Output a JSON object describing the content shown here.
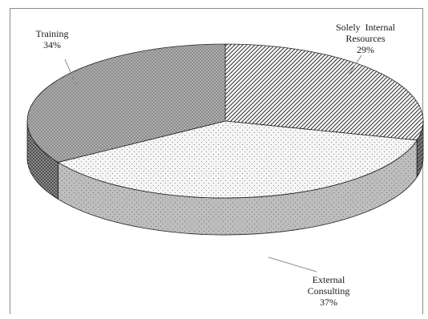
{
  "chart_data": {
    "type": "pie",
    "three_d": true,
    "title": "",
    "legend": "none",
    "slices": [
      {
        "label_lines": [
          "Solely  Internal",
          "Resources"
        ],
        "value": 29,
        "value_label": "29%",
        "pattern": "diagonal-hatch",
        "top_color": "#ffffff",
        "side_color": "#7a7a7a",
        "ink": "#333333"
      },
      {
        "label_lines": [
          "External",
          "Consulting"
        ],
        "value": 37,
        "value_label": "37%",
        "pattern": "fine-dots",
        "top_color": "#f5f5f5",
        "side_color": "#bdbdbd",
        "ink": "#6a6a6a"
      },
      {
        "label_lines": [
          "Training"
        ],
        "value": 34,
        "value_label": "34%",
        "pattern": "dense-dots",
        "top_color": "#8a8a8a",
        "side_color": "#4d4d4d",
        "ink": "#dedede"
      }
    ],
    "leader_line_color": "#8c8c8c",
    "edge_color": "#222222"
  }
}
